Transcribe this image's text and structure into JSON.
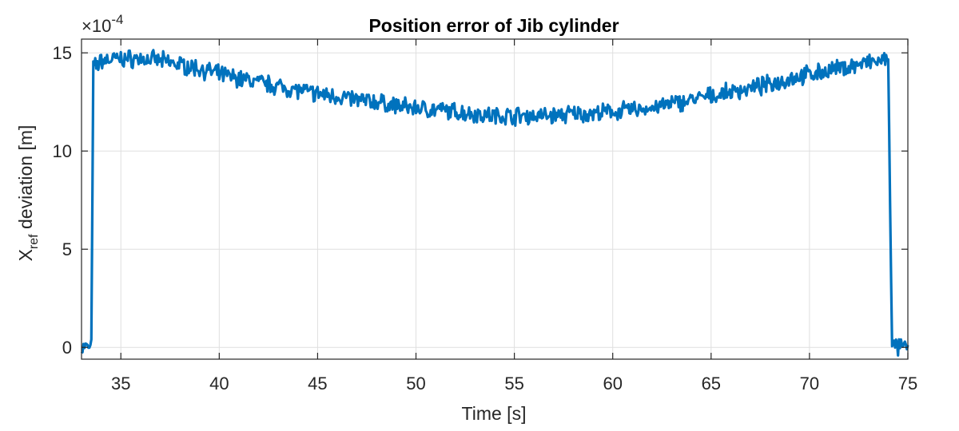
{
  "chart_data": {
    "type": "line",
    "title": "Position error of Jib cylinder",
    "xlabel": "Time [s]",
    "ylabel_main": "X",
    "ylabel_sub": "ref",
    "ylabel_rest": " deviation [m]",
    "y_exponent_base": "×10",
    "y_exponent": "-4",
    "xlim": [
      33,
      75
    ],
    "ylim": [
      -0.6,
      15.7
    ],
    "xticks": [
      35,
      40,
      45,
      50,
      55,
      60,
      65,
      70,
      75
    ],
    "yticks": [
      0,
      5,
      10,
      15
    ],
    "xtick_labels": [
      "35",
      "40",
      "45",
      "50",
      "55",
      "60",
      "65",
      "70",
      "75"
    ],
    "ytick_labels": [
      "0",
      "5",
      "10",
      "15"
    ],
    "grid": true,
    "series": [
      {
        "color": "#0072bd",
        "x": [
          33.0,
          33.5,
          33.6,
          34,
          35,
          36,
          37,
          38,
          39,
          40,
          41,
          42,
          43,
          44,
          45,
          46,
          47,
          48,
          49,
          50,
          51,
          52,
          53,
          54,
          55,
          56,
          57,
          58,
          59,
          60,
          61,
          62,
          63,
          64,
          65,
          66,
          67,
          68,
          69,
          70,
          71,
          72,
          73,
          73.9,
          74.0,
          74.2,
          75.0
        ],
        "y": [
          0.0,
          0.0,
          14.2,
          14.6,
          14.7,
          14.7,
          14.6,
          14.4,
          14.2,
          13.9,
          13.7,
          13.5,
          13.3,
          13.1,
          12.9,
          12.8,
          12.6,
          12.5,
          12.3,
          12.2,
          12.1,
          12.0,
          11.9,
          11.8,
          11.8,
          11.8,
          11.8,
          11.9,
          11.9,
          12.0,
          12.1,
          12.2,
          12.4,
          12.6,
          12.8,
          13.0,
          13.2,
          13.4,
          13.7,
          13.9,
          14.1,
          14.3,
          14.5,
          14.6,
          14.8,
          0.0,
          0.0
        ],
        "noise_amplitude": 0.35
      }
    ]
  }
}
